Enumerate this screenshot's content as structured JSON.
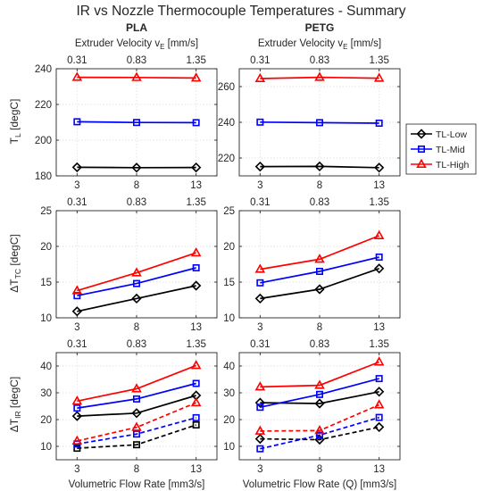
{
  "figure": {
    "title": "IR vs Nozzle Thermocouple Temperatures - Summary",
    "column_titles": [
      "PLA",
      "PETG"
    ],
    "top_axis_label_main": "Extruder Velocity v",
    "top_axis_label_sub": "E",
    "top_axis_label_unit": " [mm/s]",
    "top_tick_labels": [
      "0.31",
      "0.83",
      "1.35"
    ],
    "bottom_tick_labels": [
      "3",
      "8",
      "13"
    ],
    "xlabels": [
      "Volumetric Flow Rate [mm3/s]",
      "Volumetric Flow Rate (Q) [mm3/s]"
    ],
    "row_ylabels": [
      {
        "main": "T",
        "sub": "L",
        "unit": " [degC]"
      },
      {
        "main": "ΔT",
        "sub": "TC",
        "unit": " [degC]"
      },
      {
        "main": "ΔT",
        "sub": "IR",
        "unit": " [degC]"
      }
    ],
    "legend": [
      "TL-Low",
      "TL-Mid",
      "TL-High"
    ],
    "colors": {
      "low": "#000000",
      "mid": "#0000ff",
      "high": "#ff0000",
      "grid": "#e3e3e3",
      "axis": "#262626"
    }
  },
  "chart_data": [
    {
      "id": "pla-tl",
      "type": "line",
      "ylim": [
        180,
        240
      ],
      "yticks": [
        180,
        200,
        220,
        240
      ],
      "x": [
        3,
        8,
        13
      ],
      "x_top": [
        0.31,
        0.83,
        1.35
      ],
      "series": [
        {
          "name": "TL-Low",
          "color": "#000000",
          "marker": "diamond",
          "style": "solid",
          "values": [
            184.8,
            184.6,
            184.7
          ]
        },
        {
          "name": "TL-Mid",
          "color": "#0000ff",
          "marker": "square",
          "style": "solid",
          "values": [
            210.3,
            209.9,
            209.8
          ]
        },
        {
          "name": "TL-High",
          "color": "#ff0000",
          "marker": "triangle",
          "style": "solid",
          "values": [
            235.2,
            235.1,
            234.8
          ]
        }
      ]
    },
    {
      "id": "petg-tl",
      "type": "line",
      "ylim": [
        210,
        270
      ],
      "yticks": [
        220,
        240,
        260
      ],
      "x": [
        3,
        8,
        13
      ],
      "x_top": [
        0.31,
        0.83,
        1.35
      ],
      "series": [
        {
          "name": "TL-Low",
          "color": "#000000",
          "marker": "diamond",
          "style": "solid",
          "values": [
            215.2,
            215.3,
            214.6
          ]
        },
        {
          "name": "TL-Mid",
          "color": "#0000ff",
          "marker": "square",
          "style": "solid",
          "values": [
            240.1,
            239.8,
            239.5
          ]
        },
        {
          "name": "TL-High",
          "color": "#ff0000",
          "marker": "triangle",
          "style": "solid",
          "values": [
            264.5,
            265.2,
            264.7
          ]
        }
      ]
    },
    {
      "id": "pla-dtc",
      "type": "line",
      "ylim": [
        10,
        25
      ],
      "yticks": [
        10,
        15,
        20,
        25
      ],
      "x": [
        3,
        8,
        13
      ],
      "x_top": [
        0.31,
        0.83,
        1.35
      ],
      "series": [
        {
          "name": "TL-Low",
          "color": "#000000",
          "marker": "diamond",
          "style": "solid",
          "values": [
            10.9,
            12.7,
            14.5
          ]
        },
        {
          "name": "TL-Mid",
          "color": "#0000ff",
          "marker": "square",
          "style": "solid",
          "values": [
            13.1,
            14.8,
            17.0
          ]
        },
        {
          "name": "TL-High",
          "color": "#ff0000",
          "marker": "triangle",
          "style": "solid",
          "values": [
            13.8,
            16.3,
            19.1
          ]
        }
      ]
    },
    {
      "id": "petg-dtc",
      "type": "line",
      "ylim": [
        10,
        25
      ],
      "yticks": [
        10,
        15,
        20,
        25
      ],
      "x": [
        3,
        8,
        13
      ],
      "x_top": [
        0.31,
        0.83,
        1.35
      ],
      "series": [
        {
          "name": "TL-Low",
          "color": "#000000",
          "marker": "diamond",
          "style": "solid",
          "values": [
            12.7,
            14.0,
            16.9
          ]
        },
        {
          "name": "TL-Mid",
          "color": "#0000ff",
          "marker": "square",
          "style": "solid",
          "values": [
            14.9,
            16.5,
            18.5
          ]
        },
        {
          "name": "TL-High",
          "color": "#ff0000",
          "marker": "triangle",
          "style": "solid",
          "values": [
            16.8,
            18.2,
            21.5
          ]
        }
      ]
    },
    {
      "id": "pla-dir",
      "type": "line",
      "ylim": [
        5,
        45
      ],
      "yticks": [
        10,
        20,
        30,
        40
      ],
      "x": [
        3,
        8,
        13
      ],
      "x_top": [
        0.31,
        0.83,
        1.35
      ],
      "series": [
        {
          "name": "TL-Low",
          "color": "#000000",
          "marker": "diamond",
          "style": "solid",
          "values": [
            21.3,
            22.4,
            29.0
          ]
        },
        {
          "name": "TL-Mid",
          "color": "#0000ff",
          "marker": "square",
          "style": "solid",
          "values": [
            24.3,
            27.7,
            33.5
          ]
        },
        {
          "name": "TL-High",
          "color": "#ff0000",
          "marker": "triangle",
          "style": "solid",
          "values": [
            26.9,
            31.5,
            40.2
          ]
        },
        {
          "name": "TL-Low",
          "color": "#000000",
          "marker": "square",
          "style": "dashed",
          "values": [
            9.3,
            10.6,
            18.0
          ]
        },
        {
          "name": "TL-Mid",
          "color": "#0000ff",
          "marker": "square",
          "style": "dashed",
          "values": [
            10.9,
            14.6,
            20.7
          ]
        },
        {
          "name": "TL-High",
          "color": "#ff0000",
          "marker": "triangle",
          "style": "dashed",
          "values": [
            12.0,
            17.1,
            26.3
          ]
        }
      ]
    },
    {
      "id": "petg-dir",
      "type": "line",
      "ylim": [
        5,
        45
      ],
      "yticks": [
        10,
        20,
        30,
        40
      ],
      "x": [
        3,
        8,
        13
      ],
      "x_top": [
        0.31,
        0.83,
        1.35
      ],
      "series": [
        {
          "name": "TL-Low",
          "color": "#000000",
          "marker": "diamond",
          "style": "solid",
          "values": [
            26.3,
            26.0,
            30.4
          ]
        },
        {
          "name": "TL-Mid",
          "color": "#0000ff",
          "marker": "square",
          "style": "solid",
          "values": [
            24.6,
            29.4,
            35.3
          ]
        },
        {
          "name": "TL-High",
          "color": "#ff0000",
          "marker": "triangle",
          "style": "solid",
          "values": [
            32.2,
            32.8,
            41.5
          ]
        },
        {
          "name": "TL-Low",
          "color": "#000000",
          "marker": "diamond",
          "style": "dashed",
          "values": [
            12.8,
            12.5,
            17.2
          ]
        },
        {
          "name": "TL-Mid",
          "color": "#0000ff",
          "marker": "square",
          "style": "dashed",
          "values": [
            9.1,
            14.2,
            20.8
          ]
        },
        {
          "name": "TL-High",
          "color": "#ff0000",
          "marker": "triangle",
          "style": "dashed",
          "values": [
            15.7,
            15.9,
            25.5
          ]
        }
      ]
    }
  ]
}
